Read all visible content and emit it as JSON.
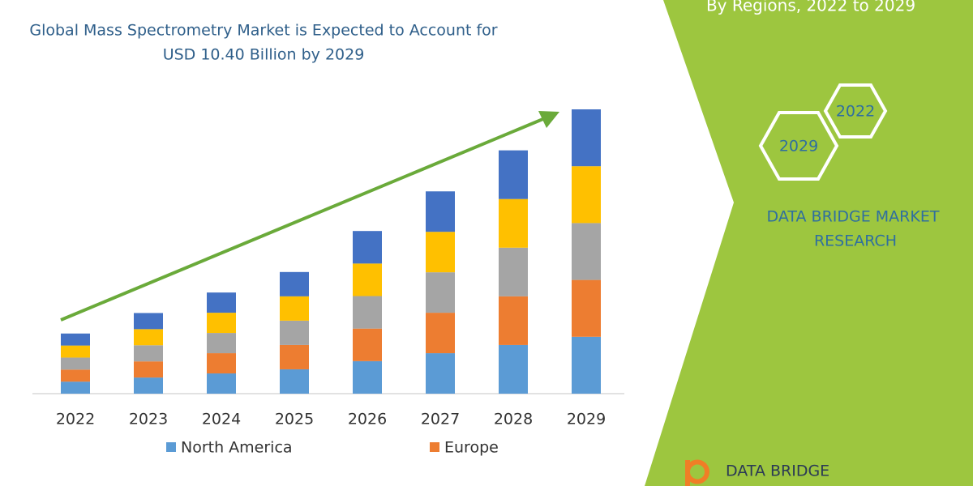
{
  "chart_data": {
    "type": "bar",
    "stacked": true,
    "title": [
      "Global Mass Spectrometry Market is Expected to Account for",
      "USD 10.40 Billion by 2029"
    ],
    "categories": [
      "2022",
      "2023",
      "2024",
      "2025",
      "2026",
      "2027",
      "2028",
      "2029"
    ],
    "series": [
      {
        "name": "North America",
        "color": "#5b9bd5",
        "values": [
          0.44,
          0.59,
          0.74,
          0.89,
          1.19,
          1.48,
          1.78,
          2.08
        ]
      },
      {
        "name": "Europe",
        "color": "#ed7d31",
        "values": [
          0.44,
          0.59,
          0.74,
          0.89,
          1.19,
          1.48,
          1.78,
          2.08
        ]
      },
      {
        "color": "#a5a5a5",
        "values": [
          0.44,
          0.59,
          0.74,
          0.89,
          1.19,
          1.48,
          1.78,
          2.08
        ]
      },
      {
        "color": "#ffc000",
        "values": [
          0.44,
          0.59,
          0.74,
          0.89,
          1.19,
          1.48,
          1.78,
          2.08
        ]
      },
      {
        "color": "#4472c4",
        "values": [
          0.44,
          0.59,
          0.74,
          0.89,
          1.19,
          1.48,
          1.78,
          2.08
        ]
      }
    ],
    "trend_color": "#6aaa3a"
  },
  "side_panel": {
    "heading": "By Regions, 2022 to 2029",
    "hexagons": [
      "2022",
      "2029"
    ],
    "company": [
      "DATA BRIDGE MARKET",
      "RESEARCH"
    ]
  },
  "logo": {
    "text": "DATA BRIDGE"
  }
}
